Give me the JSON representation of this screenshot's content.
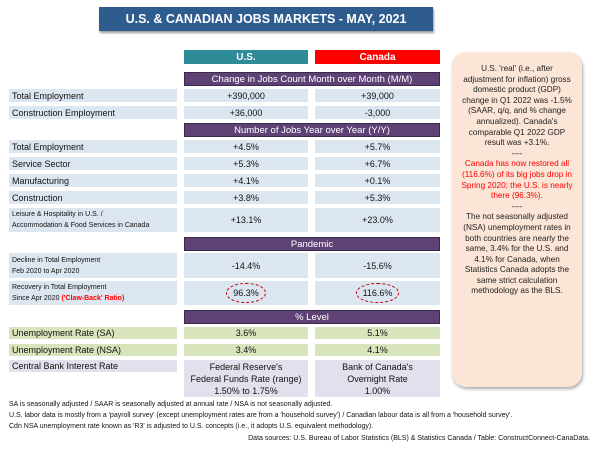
{
  "title": "U.S. & CANADIAN JOBS MARKETS - MAY, 2021",
  "columns": {
    "us": "U.S.",
    "canada": "Canada",
    "us_color": "#2E8B98",
    "canada_color": "#FF0000"
  },
  "sections": {
    "mm": "Change in Jobs Count Month over Month (M/M)",
    "yy": "Number of Jobs Year over Year (Y/Y)",
    "pandemic": "Pandemic",
    "level": "% Level"
  },
  "mm_rows": [
    {
      "label": "Total Employment",
      "us": "+390,000",
      "ca": "+39,000"
    },
    {
      "label": "Construction Employment",
      "us": "+36,000",
      "ca": "-3,000"
    }
  ],
  "yy_rows": [
    {
      "label": "Total Employment",
      "us": "+4.5%",
      "ca": "+5.7%"
    },
    {
      "label": "Service Sector",
      "us": "+5.3%",
      "ca": "+6.7%"
    },
    {
      "label": "Manufacturing",
      "us": "+4.1%",
      "ca": "+0.1%"
    },
    {
      "label": "Construction",
      "us": "+3.8%",
      "ca": "+5.3%"
    },
    {
      "label1": "Leisure & Hospitality in U.S. /",
      "label2": "Accommodation & Food Services in Canada",
      "us": "+13.1%",
      "ca": "+23.0%"
    }
  ],
  "pandemic_rows": [
    {
      "label1": "Decline in Total Employment",
      "label2": "Feb 2020 to Apr 2020",
      "us": "-14.4%",
      "ca": "-15.6%"
    },
    {
      "label1": "Recovery in Total Employment",
      "label2": "Since Apr 2020 ",
      "label_red": "('Claw-Back' Ratio)",
      "us": "96.3%",
      "ca": "116.6%"
    }
  ],
  "level_rows": [
    {
      "label": "Unemployment Rate (SA)",
      "us": "3.6%",
      "ca": "5.1%"
    },
    {
      "label": "Unemployment Rate (NSA)",
      "us": "3.4%",
      "ca": "4.1%"
    },
    {
      "label": "Central Bank Interest Rate",
      "us1": "Federal Reserve's",
      "us2": "Federal Funds Rate (range)",
      "us3": "1.50% to 1.75%",
      "ca1": "Bank of Canada's",
      "ca2": "Overnight Rate",
      "ca3": "1.00%"
    }
  ],
  "notes": [
    "SA is seasonally adjusted / SAAR is seasonally adjusted at annual rate / NSA is not seasonally adjusted.",
    "U.S. labor data is mostly from a 'payroll survey' (except unemployment rates are from a 'household survey') / Canadian labour data is all from a 'household survey'.",
    "Cdn NSA unemployment rate known as 'R3' is adjusted to U.S. concepts (i.e., it adopts U.S. equivalent methodology)."
  ],
  "sources": "Data sources: U.S. Bureau of Labor Statistics (BLS) & Statistics Canada / Table: ConstructConnect-CanaData.",
  "sidebox": {
    "p1": "U.S. 'real' (i.e., after adjustment for inflation) gross domestic product (GDP) change in Q1 2022 was -1.5% (SAAR, q/q, and % change annualized). Canada's comparable Q1 2022 GDP result was +3.1%.",
    "sep": "----",
    "p2": "Canada has now restored all (116.6%) of its big jobs drop in Spring 2020; the U.S. is nearly there (96.3%).",
    "p3": "The not seasonally adjusted (NSA) unemployment rates in both countries are nearly the same, 3.4% for the U.S. and 4.1% for Canada, when Statistics Canada adopts the same strict calculation methodology as the BLS."
  }
}
